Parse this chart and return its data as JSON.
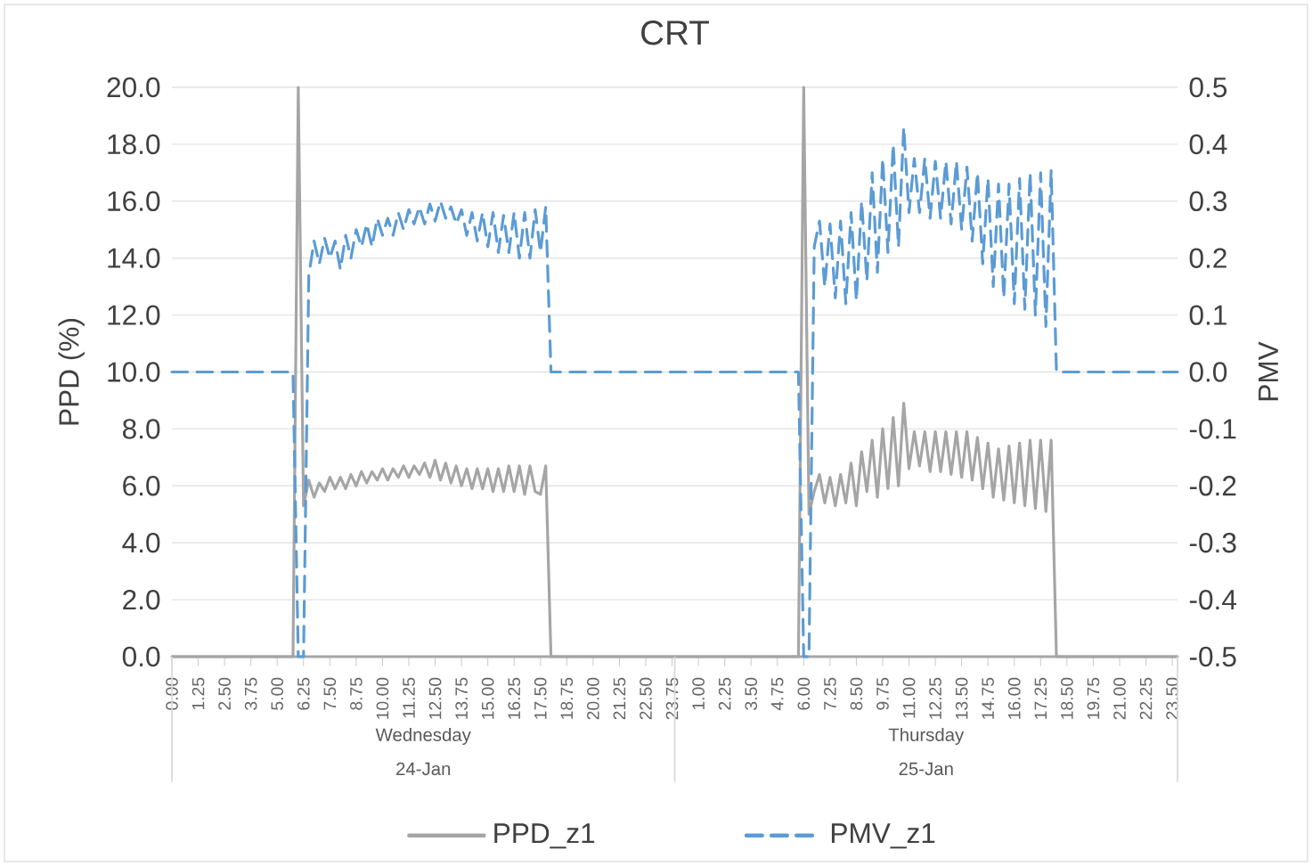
{
  "chart_data": {
    "type": "line",
    "title": "CRT",
    "ylabel": "PPD (%)",
    "y2label": "PMV",
    "categories": [
      "0.00",
      null,
      null,
      null,
      null,
      "1.25",
      null,
      null,
      null,
      null,
      "2.50",
      null,
      null,
      null,
      null,
      "3.75",
      null,
      null,
      null,
      null,
      "5.00",
      null,
      null,
      null,
      null,
      "6.25",
      null,
      null,
      null,
      null,
      "7.50",
      null,
      null,
      null,
      null,
      "8.75",
      null,
      null,
      null,
      null,
      "10.00",
      null,
      null,
      null,
      null,
      "11.25",
      null,
      null,
      null,
      null,
      "12.50",
      null,
      null,
      null,
      null,
      "13.75",
      null,
      null,
      null,
      null,
      "15.00",
      null,
      null,
      null,
      null,
      "16.25",
      null,
      null,
      null,
      null,
      "17.50",
      null,
      null,
      null,
      null,
      "18.75",
      null,
      null,
      null,
      null,
      "20.00",
      null,
      null,
      null,
      null,
      "21.25",
      null,
      null,
      null,
      null,
      "22.50",
      null,
      null,
      null,
      null,
      "23.75",
      null,
      null,
      null,
      null,
      "1.00",
      null,
      null,
      null,
      null,
      "2.25",
      null,
      null,
      null,
      null,
      "3.50",
      null,
      null,
      null,
      null,
      "4.75",
      null,
      null,
      null,
      null,
      "6.00",
      null,
      null,
      null,
      null,
      "7.25",
      null,
      null,
      null,
      null,
      "8.50",
      null,
      null,
      null,
      null,
      "9.75",
      null,
      null,
      null,
      null,
      "11.00",
      null,
      null,
      null,
      null,
      "12.25",
      null,
      null,
      null,
      null,
      "13.50",
      null,
      null,
      null,
      null,
      "14.75",
      null,
      null,
      null,
      null,
      "16.00",
      null,
      null,
      null,
      null,
      "17.25",
      null,
      null,
      null,
      null,
      "18.50",
      null,
      null,
      null,
      null,
      "19.75",
      null,
      null,
      null,
      null,
      "21.00",
      null,
      null,
      null,
      null,
      "22.25",
      null,
      null,
      null,
      null,
      "23.50",
      null
    ],
    "ylim": [
      0,
      20
    ],
    "yticks": [
      {
        "value": 0,
        "label": "0.0"
      },
      {
        "value": 2,
        "label": "2.0"
      },
      {
        "value": 4,
        "label": "4.0"
      },
      {
        "value": 6,
        "label": "6.0"
      },
      {
        "value": 8,
        "label": "8.0"
      },
      {
        "value": 10,
        "label": "10.0"
      },
      {
        "value": 12,
        "label": "12.0"
      },
      {
        "value": 14,
        "label": "14.0"
      },
      {
        "value": 16,
        "label": "16.0"
      },
      {
        "value": 18,
        "label": "18.0"
      },
      {
        "value": 20,
        "label": "20.0"
      }
    ],
    "y2lim": [
      -0.5,
      0.5
    ],
    "y2ticks": [
      -0.5,
      -0.4,
      -0.3,
      -0.2,
      -0.1,
      {
        "value": 0,
        "label": "0.0"
      },
      0.1,
      0.2,
      0.3,
      0.4,
      0.5
    ],
    "grid": "y",
    "legend": "bottom",
    "annotations": [
      "Wednesday",
      "24-Jan",
      "Thursday",
      "25-Jan"
    ],
    "series": [
      {
        "name": "PPD_z1",
        "color": "#a5a5a5",
        "line_style": "solid",
        "values": [
          0,
          0,
          0,
          0,
          0,
          0,
          0,
          0,
          0,
          0,
          0,
          0,
          0,
          0,
          0,
          0,
          0,
          0,
          0,
          0,
          0,
          0,
          0,
          0,
          20,
          5.3,
          6.2,
          5.6,
          6.1,
          5.8,
          6.3,
          5.9,
          6.3,
          5.9,
          6.4,
          6.0,
          6.5,
          6.1,
          6.5,
          6.2,
          6.6,
          6.2,
          6.6,
          6.3,
          6.7,
          6.3,
          6.7,
          6.4,
          6.8,
          6.3,
          6.9,
          6.2,
          6.8,
          6.1,
          6.7,
          6.0,
          6.6,
          5.9,
          6.6,
          5.9,
          6.6,
          5.8,
          6.6,
          5.8,
          6.7,
          5.8,
          6.7,
          5.7,
          6.7,
          5.8,
          5.7,
          6.7,
          0,
          0,
          0,
          0,
          0,
          0,
          0,
          0,
          0,
          0,
          0,
          0,
          0,
          0,
          0,
          0,
          0,
          0,
          0,
          0,
          0,
          0,
          0,
          0,
          0,
          0,
          0,
          0,
          0,
          0,
          0,
          0,
          0,
          0,
          0,
          0,
          0,
          0,
          0,
          0,
          0,
          0,
          0,
          0,
          0,
          0,
          0,
          0,
          20,
          5.0,
          5.8,
          6.4,
          5.4,
          6.3,
          5.3,
          6.4,
          5.4,
          6.8,
          5.3,
          7.2,
          5.8,
          7.6,
          5.6,
          8.0,
          5.9,
          8.4,
          6.0,
          8.9,
          6.6,
          7.9,
          6.7,
          7.9,
          6.5,
          7.9,
          6.5,
          7.9,
          6.4,
          7.9,
          6.3,
          7.9,
          6.2,
          7.7,
          5.9,
          7.5,
          5.6,
          7.3,
          5.5,
          7.4,
          5.4,
          7.5,
          5.3,
          7.6,
          5.2,
          7.6,
          5.1,
          7.6,
          0,
          0,
          0,
          0,
          0,
          0,
          0,
          0,
          0,
          0,
          0,
          0,
          0,
          0,
          0,
          0,
          0,
          0,
          0,
          0,
          0,
          0,
          0,
          0
        ]
      },
      {
        "name": "PMV_z1",
        "color": "#5b9bd5",
        "line_style": "dashed",
        "axis": "y2",
        "values": [
          0,
          0,
          0,
          0,
          0,
          0,
          0,
          0,
          0,
          0,
          0,
          0,
          0,
          0,
          0,
          0,
          0,
          0,
          0,
          0,
          0,
          0,
          0,
          0,
          -0.5,
          -0.5,
          0.17,
          0.23,
          0.19,
          0.235,
          0.2,
          0.23,
          0.18,
          0.24,
          0.2,
          0.25,
          0.22,
          0.26,
          0.22,
          0.27,
          0.24,
          0.27,
          0.24,
          0.28,
          0.25,
          0.285,
          0.26,
          0.29,
          0.26,
          0.295,
          0.265,
          0.3,
          0.27,
          0.29,
          0.26,
          0.285,
          0.24,
          0.28,
          0.23,
          0.28,
          0.22,
          0.28,
          0.21,
          0.275,
          0.21,
          0.28,
          0.2,
          0.28,
          0.2,
          0.285,
          0.21,
          0.29,
          0,
          0,
          0,
          0,
          0,
          0,
          0,
          0,
          0,
          0,
          0,
          0,
          0,
          0,
          0,
          0,
          0,
          0,
          0,
          0,
          0,
          0,
          0,
          0,
          0,
          0,
          0,
          0,
          0,
          0,
          0,
          0,
          0,
          0,
          0,
          0,
          0,
          0,
          0,
          0,
          0,
          0,
          0,
          0,
          0,
          0,
          0,
          0,
          -0.5,
          -0.5,
          0.22,
          0.265,
          0.15,
          0.26,
          0.13,
          0.265,
          0.12,
          0.28,
          0.125,
          0.3,
          0.16,
          0.35,
          0.175,
          0.375,
          0.21,
          0.4,
          0.22,
          0.43,
          0.28,
          0.375,
          0.28,
          0.375,
          0.27,
          0.37,
          0.27,
          0.37,
          0.26,
          0.37,
          0.25,
          0.36,
          0.23,
          0.35,
          0.19,
          0.34,
          0.15,
          0.33,
          0.13,
          0.33,
          0.12,
          0.34,
          0.11,
          0.35,
          0.1,
          0.35,
          0.08,
          0.355,
          0,
          0,
          0,
          0,
          0,
          0,
          0,
          0,
          0,
          0,
          0,
          0,
          0,
          0,
          0,
          0,
          0,
          0,
          0,
          0,
          0,
          0,
          0,
          0
        ]
      }
    ]
  }
}
